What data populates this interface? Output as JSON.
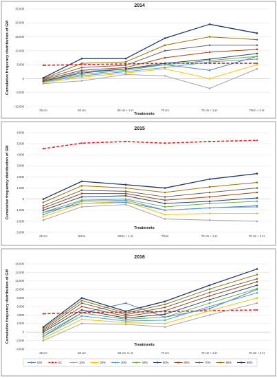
{
  "chart_data": [
    {
      "type": "line",
      "title": "2014",
      "xlabel": "Treatments",
      "ylabel": "Cumulative frequency distribution of GM",
      "categories": [
        "25 cm",
        "50 cm",
        "50 cm + 1 irr.",
        "70 cm",
        "70 cm + 1 irr.",
        "70cm + 2 irr."
      ],
      "ylim": [
        -10,
        25
      ],
      "yticks": [
        -10,
        -5,
        0,
        5,
        10,
        15,
        20,
        25
      ],
      "ytick_labels": [
        "-10.000",
        "-5.000",
        "0",
        "5.000",
        "10.000",
        "15.000",
        "20.000",
        "25.000"
      ],
      "grid": true,
      "series": [
        {
          "name": "GM",
          "color": "#4f81bd",
          "style": "solid",
          "values": [
            -1.0,
            2.5,
            3.5,
            5.0,
            3.0,
            8.0
          ]
        },
        {
          "name": "VC",
          "color": "#e02020",
          "style": "dashed",
          "values": [
            4.8,
            5.0,
            5.3,
            5.5,
            5.5,
            5.5
          ]
        },
        {
          "name": "10%",
          "color": "#a5a5a5",
          "style": "solid",
          "values": [
            -1.8,
            -0.8,
            1.5,
            1.0,
            -3.5,
            3.5
          ]
        },
        {
          "name": "20%",
          "color": "#ffc000",
          "style": "solid",
          "values": [
            -1.5,
            0.5,
            2.0,
            3.5,
            0.0,
            5.0
          ]
        },
        {
          "name": "30%",
          "color": "#5b9bd5",
          "style": "solid",
          "values": [
            -1.2,
            1.0,
            2.5,
            4.0,
            6.0,
            7.0
          ]
        },
        {
          "name": "40%",
          "color": "#70ad47",
          "style": "solid",
          "values": [
            -1.0,
            1.5,
            3.0,
            5.0,
            6.5,
            8.0
          ]
        },
        {
          "name": "50%",
          "color": "#264478",
          "style": "solid",
          "values": [
            -0.8,
            2.0,
            3.5,
            5.5,
            7.0,
            9.0
          ]
        },
        {
          "name": "60%",
          "color": "#9e480e",
          "style": "solid",
          "values": [
            -0.5,
            3.0,
            4.0,
            7.5,
            9.5,
            10.5
          ]
        },
        {
          "name": "70%",
          "color": "#636363",
          "style": "solid",
          "values": [
            -0.2,
            4.0,
            4.8,
            10.0,
            12.0,
            12.0
          ]
        },
        {
          "name": "80%",
          "color": "#997300",
          "style": "solid",
          "values": [
            0.0,
            5.5,
            6.0,
            12.0,
            15.0,
            14.0
          ]
        },
        {
          "name": "90%",
          "color": "#1f3864",
          "style": "solid",
          "values": [
            0.3,
            7.2,
            7.2,
            14.5,
            19.5,
            16.3
          ]
        }
      ]
    },
    {
      "type": "line",
      "title": "2015",
      "xlabel": "Treatments",
      "ylabel": "Cumulative frequency distribution of GM",
      "categories": [
        "25 cm",
        "50cm",
        "50cm + 1 irr.",
        "70cm",
        "70 cm + 1 irr.",
        "70 cm + 2 irr."
      ],
      "ylim": [
        -3,
        6
      ],
      "yticks": [
        -3,
        -2,
        -1,
        0,
        1,
        2,
        3,
        4,
        5,
        6
      ],
      "ytick_labels": [
        "-3.000",
        "-2.000",
        "-1.000",
        "0",
        "1.000",
        "2.000",
        "3.000",
        "4.000",
        "5.000",
        "6.000"
      ],
      "grid": true,
      "series": [
        {
          "name": "GM",
          "color": "#4f81bd",
          "style": "solid",
          "values": [
            -1.2,
            -0.4,
            -0.3,
            -1.0,
            -0.8,
            -0.6
          ]
        },
        {
          "name": "VC",
          "color": "#e02020",
          "style": "dashed",
          "values": [
            4.55,
            5.05,
            5.2,
            5.05,
            5.2,
            5.3
          ]
        },
        {
          "name": "10%",
          "color": "#a5a5a5",
          "style": "solid",
          "values": [
            -1.9,
            -0.7,
            -0.5,
            -1.8,
            -1.9,
            -2.0
          ]
        },
        {
          "name": "20%",
          "color": "#ffc000",
          "style": "solid",
          "values": [
            -1.6,
            -0.4,
            -0.2,
            -1.4,
            -1.3,
            -1.3
          ]
        },
        {
          "name": "30%",
          "color": "#5b9bd5",
          "style": "solid",
          "values": [
            -1.4,
            -0.2,
            -0.1,
            -1.0,
            -0.8,
            -0.7
          ]
        },
        {
          "name": "40%",
          "color": "#70ad47",
          "style": "solid",
          "values": [
            -1.2,
            -0.1,
            0.0,
            -0.7,
            -0.4,
            -0.2
          ]
        },
        {
          "name": "50%",
          "color": "#264478",
          "style": "solid",
          "values": [
            -1.0,
            0.2,
            0.3,
            -0.4,
            -0.2,
            0.1
          ]
        },
        {
          "name": "60%",
          "color": "#9e480e",
          "style": "solid",
          "values": [
            -0.8,
            0.5,
            0.5,
            -0.1,
            0.2,
            0.6
          ]
        },
        {
          "name": "70%",
          "color": "#636363",
          "style": "solid",
          "values": [
            -0.6,
            0.8,
            0.7,
            0.2,
            0.6,
            1.0
          ]
        },
        {
          "name": "80%",
          "color": "#997300",
          "style": "solid",
          "values": [
            -0.3,
            1.2,
            1.0,
            0.6,
            1.1,
            1.5
          ]
        },
        {
          "name": "90%",
          "color": "#1f3864",
          "style": "solid",
          "values": [
            0.0,
            1.6,
            1.3,
            1.0,
            1.8,
            2.3
          ]
        }
      ]
    },
    {
      "type": "line",
      "title": "2016",
      "xlabel": "Treatments",
      "ylabel": "Cumulative frequency distribution of GM",
      "categories": [
        "25 cm",
        "50 cm",
        "50 cm +1 irr.",
        "70 cm",
        "70 cm + 1 irr.",
        "70 cm + 2 irr."
      ],
      "ylim": [
        -4,
        16
      ],
      "yticks": [
        -4,
        -2,
        0,
        2,
        4,
        6,
        8,
        10,
        12,
        14,
        16
      ],
      "ytick_labels": [
        "-4.000",
        "-2.000",
        "0",
        "2.000",
        "4.000",
        "6.000",
        "8.000",
        "10.000",
        "12.000",
        "14.000",
        "16.000"
      ],
      "grid": true,
      "series": [
        {
          "name": "GM",
          "color": "#4f81bd",
          "style": "solid",
          "values": [
            -1.0,
            4.5,
            6.8,
            3.5,
            5.5,
            10.0
          ]
        },
        {
          "name": "VC",
          "color": "#e02020",
          "style": "dashed",
          "values": [
            4.3,
            4.6,
            4.7,
            4.8,
            5.0,
            5.2
          ]
        },
        {
          "name": "10%",
          "color": "#a5a5a5",
          "style": "solid",
          "values": [
            -2.0,
            2.0,
            1.8,
            1.2,
            4.0,
            6.8
          ]
        },
        {
          "name": "20%",
          "color": "#ffc000",
          "style": "solid",
          "values": [
            -1.5,
            3.0,
            2.2,
            2.0,
            5.0,
            8.0
          ]
        },
        {
          "name": "30%",
          "color": "#5b9bd5",
          "style": "solid",
          "values": [
            -1.0,
            3.8,
            2.6,
            2.8,
            6.0,
            9.2
          ]
        },
        {
          "name": "40%",
          "color": "#70ad47",
          "style": "solid",
          "values": [
            -0.5,
            4.5,
            3.0,
            3.5,
            6.8,
            10.2
          ]
        },
        {
          "name": "50%",
          "color": "#264478",
          "style": "solid",
          "values": [
            0.0,
            5.2,
            3.3,
            4.2,
            7.6,
            11.0
          ]
        },
        {
          "name": "60%",
          "color": "#9e480e",
          "style": "solid",
          "values": [
            0.3,
            6.0,
            3.7,
            5.0,
            8.5,
            11.8
          ]
        },
        {
          "name": "70%",
          "color": "#636363",
          "style": "solid",
          "values": [
            0.6,
            6.8,
            4.1,
            5.8,
            9.3,
            12.5
          ]
        },
        {
          "name": "80%",
          "color": "#997300",
          "style": "solid",
          "values": [
            0.9,
            7.4,
            4.5,
            6.5,
            10.1,
            13.5
          ]
        },
        {
          "name": "90%",
          "color": "#1f3864",
          "style": "solid",
          "values": [
            1.2,
            8.0,
            4.9,
            7.2,
            11.0,
            14.8
          ]
        }
      ]
    }
  ],
  "legend": {
    "placement": "bottom",
    "items": [
      "GM",
      "VC",
      "10%",
      "20%",
      "30%",
      "40%",
      "50%",
      "60%",
      "70%",
      "80%",
      "90%"
    ]
  }
}
